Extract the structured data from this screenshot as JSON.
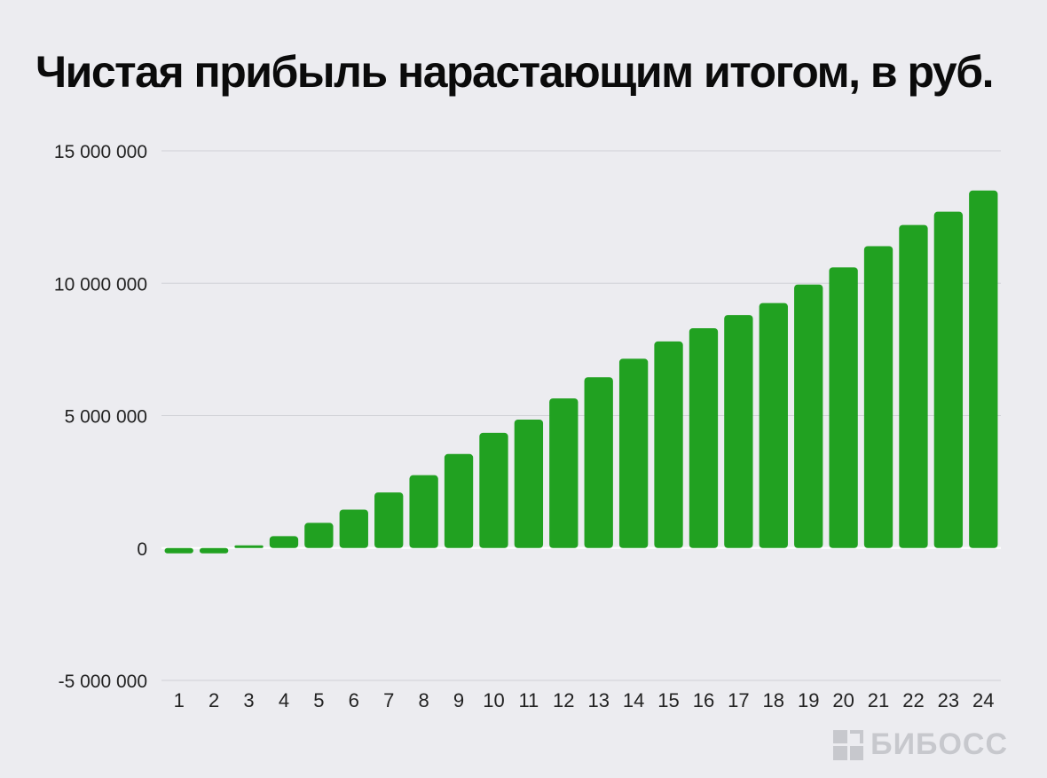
{
  "title": "Чистая прибыль нарастающим итогом, в руб.",
  "watermark": "БИБОСС",
  "colors": {
    "bar": "#21a121",
    "background": "#ececf0"
  },
  "chart_data": {
    "type": "bar",
    "title": "Чистая прибыль нарастающим итогом, в руб.",
    "xlabel": "",
    "ylabel": "",
    "ylim": [
      -5000000,
      15000000
    ],
    "yticks": [
      15000000,
      10000000,
      5000000,
      0,
      -5000000
    ],
    "ytick_labels": [
      "15 000 000",
      "10 000 000",
      "5 000 000",
      "0",
      "-5 000 000"
    ],
    "grid": true,
    "categories": [
      "1",
      "2",
      "3",
      "4",
      "5",
      "6",
      "7",
      "8",
      "9",
      "10",
      "11",
      "12",
      "13",
      "14",
      "15",
      "16",
      "17",
      "18",
      "19",
      "20",
      "21",
      "22",
      "23",
      "24"
    ],
    "values": [
      -200000,
      -200000,
      100000,
      450000,
      950000,
      1450000,
      2100000,
      2750000,
      3550000,
      4350000,
      4850000,
      5650000,
      6450000,
      7150000,
      7800000,
      8300000,
      8800000,
      9250000,
      9950000,
      10600000,
      11400000,
      12200000,
      12700000,
      13500000
    ]
  }
}
